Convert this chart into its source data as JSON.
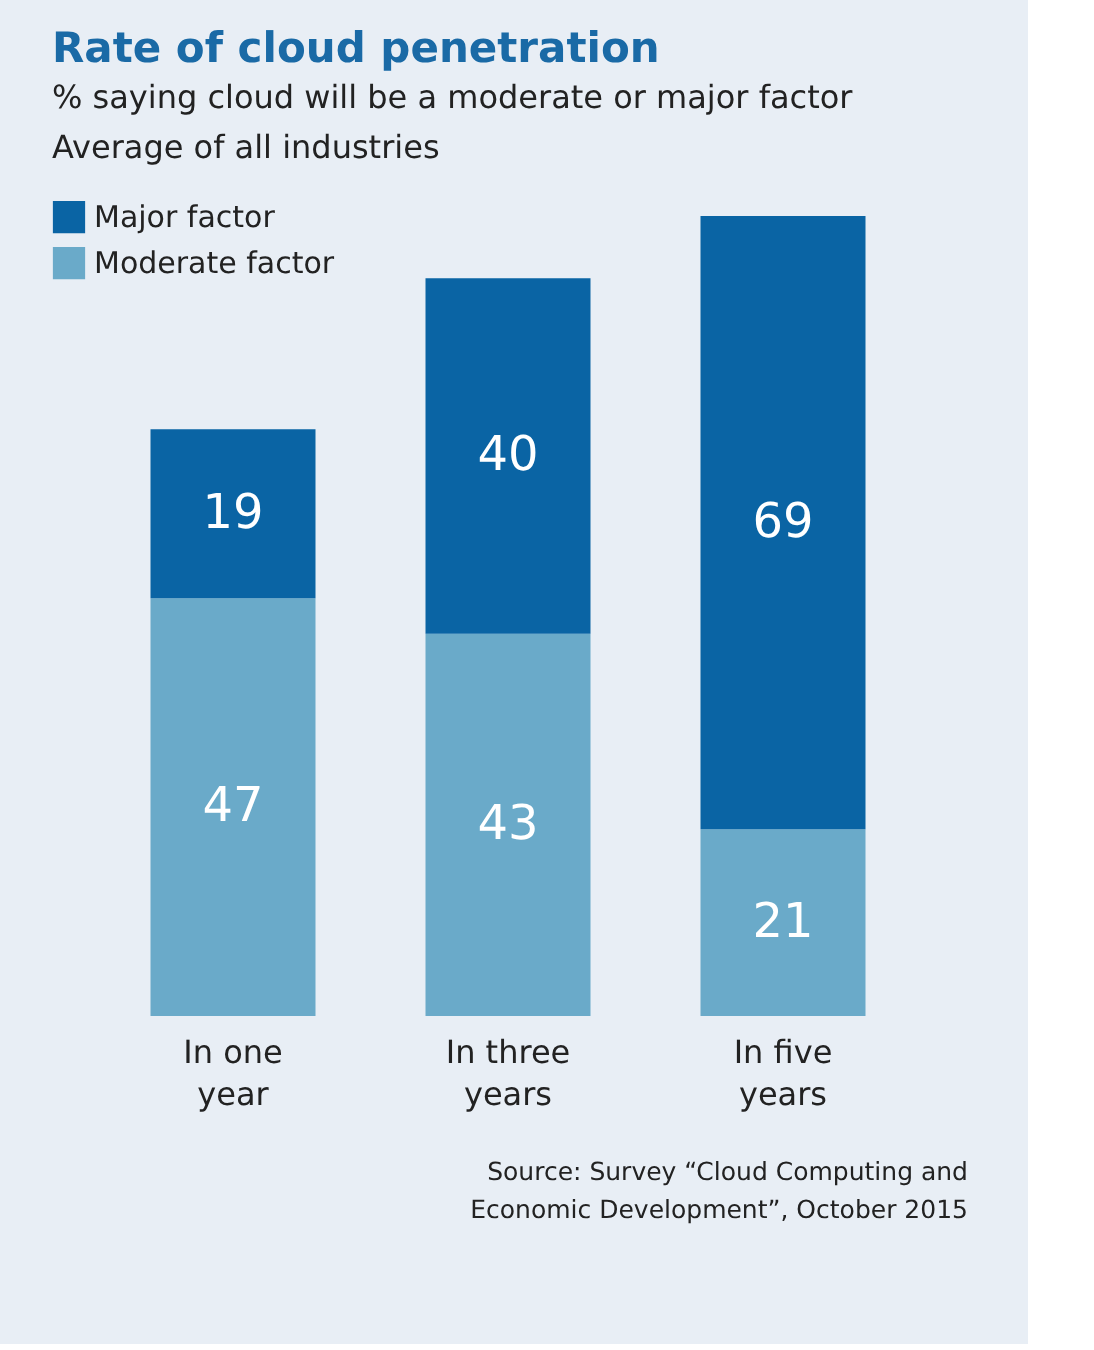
{
  "chart_data": {
    "type": "bar",
    "stacked": true,
    "data_labels": true,
    "legend": "top left",
    "grid": false,
    "title": "Rate of cloud penetration",
    "subtitle": "% saying cloud will be a moderate or major factor\nAverage of all industries",
    "categories": [
      "In one year",
      "In three years",
      "In five years"
    ],
    "series": [
      {
        "name": "Moderate factor",
        "color": "#6aaac9",
        "values": [
          47,
          43,
          21
        ]
      },
      {
        "name": "Major factor",
        "color": "#0a64a4",
        "values": [
          19,
          40,
          69
        ]
      }
    ],
    "annotations": [
      "Source: Survey “Cloud Computing and Economic Development”, October 2015"
    ]
  }
}
